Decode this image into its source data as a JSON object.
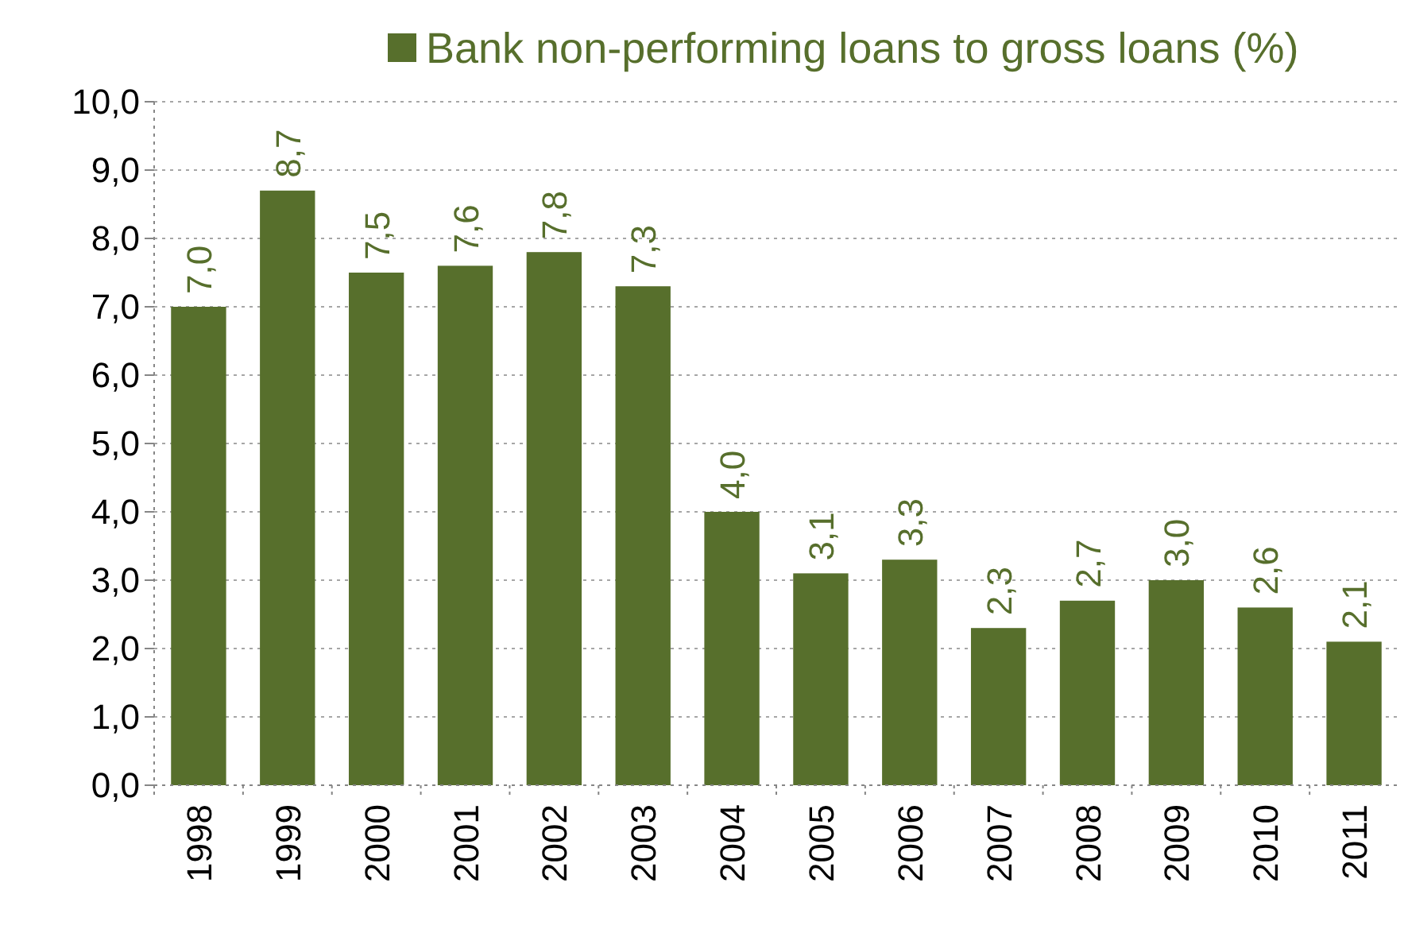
{
  "chart_data": {
    "type": "bar",
    "categories": [
      "1998",
      "1999",
      "2000",
      "2001",
      "2002",
      "2003",
      "2004",
      "2005",
      "2006",
      "2007",
      "2008",
      "2009",
      "2010",
      "2011"
    ],
    "series": [
      {
        "name": "Bank non-performing loans to gross loans (%)",
        "color": "#576f2c",
        "values": [
          7.0,
          8.7,
          7.5,
          7.6,
          7.8,
          7.3,
          4.0,
          3.1,
          3.3,
          2.3,
          2.7,
          3.0,
          2.6,
          2.1
        ],
        "value_labels": [
          "7,0",
          "8,7",
          "7,5",
          "7,6",
          "7,8",
          "7,3",
          "4,0",
          "3,1",
          "3,3",
          "2,3",
          "2,7",
          "3,0",
          "2,6",
          "2,1"
        ]
      }
    ],
    "ylim": [
      0,
      10
    ],
    "yticks": [
      {
        "value": 0,
        "label": "0,0"
      },
      {
        "value": 1,
        "label": "1,0"
      },
      {
        "value": 2,
        "label": "2,0"
      },
      {
        "value": 3,
        "label": "3,0"
      },
      {
        "value": 4,
        "label": "4,0"
      },
      {
        "value": 5,
        "label": "5,0"
      },
      {
        "value": 6,
        "label": "6,0"
      },
      {
        "value": 7,
        "label": "7,0"
      },
      {
        "value": 8,
        "label": "8,0"
      },
      {
        "value": 9,
        "label": "9,0"
      },
      {
        "value": 10,
        "label": "10,0"
      }
    ],
    "grid": "y",
    "legend": "top"
  }
}
